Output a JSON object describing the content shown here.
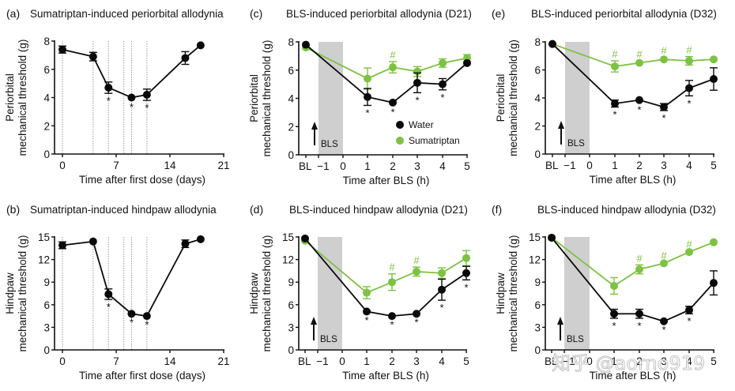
{
  "colors": {
    "water": "#0a0a0a",
    "sumatriptan": "#7dc242",
    "shade": "#cfcfcf",
    "axis": "#111111",
    "dotted_line": "#9a9a9a"
  },
  "watermark": "知乎 @aorno919",
  "chart_data": [
    {
      "id": "a",
      "letter": "(a)",
      "type": "line",
      "title": "Sumatriptan-induced periorbital allodynia",
      "xlabel": "Time after first dose (days)",
      "ylabel": [
        "Periorbital",
        "mechanical threshold (g)"
      ],
      "xlim": [
        -1,
        21
      ],
      "ylim": [
        0,
        8
      ],
      "xticks": [
        0,
        7,
        14,
        21
      ],
      "xtick_labels": [
        "0",
        "7",
        "14",
        "21"
      ],
      "yticks": [
        0,
        2,
        4,
        6,
        8
      ],
      "ytick_labels": [
        "0",
        "2",
        "4",
        "6",
        "8"
      ],
      "dosing_days": [
        0,
        4,
        6,
        8,
        9,
        11
      ],
      "series": [
        {
          "name": "Sumatriptan",
          "color_key": "water",
          "x": [
            0,
            4,
            6,
            9,
            11,
            16,
            18
          ],
          "y": [
            7.4,
            6.9,
            4.7,
            4.0,
            4.2,
            6.8,
            7.7
          ],
          "err": [
            0.25,
            0.3,
            0.4,
            0.1,
            0.4,
            0.45,
            0.1
          ],
          "marks": [
            "",
            "",
            "*",
            "*",
            "*",
            "",
            ""
          ],
          "mark_color_key": "water"
        }
      ]
    },
    {
      "id": "b",
      "letter": "(b)",
      "type": "line",
      "title": "Sumatriptan-induced hindpaw allodynia",
      "xlabel": "Time after first dose (days)",
      "ylabel": [
        "Hindpaw",
        "mechanical threshold (g)"
      ],
      "xlim": [
        -1,
        21
      ],
      "ylim": [
        0,
        15
      ],
      "xticks": [
        0,
        7,
        14,
        21
      ],
      "xtick_labels": [
        "0",
        "7",
        "14",
        "21"
      ],
      "yticks": [
        0,
        3,
        6,
        9,
        12,
        15
      ],
      "ytick_labels": [
        "0",
        "3",
        "6",
        "9",
        "12",
        "15"
      ],
      "dosing_days": [
        0,
        4,
        6,
        8,
        9,
        11
      ],
      "series": [
        {
          "name": "Sumatriptan",
          "color_key": "water",
          "x": [
            0,
            4,
            6,
            9,
            11,
            16,
            18
          ],
          "y": [
            13.9,
            14.4,
            7.4,
            4.8,
            4.5,
            14.1,
            14.7
          ],
          "err": [
            0.45,
            0.15,
            0.7,
            0.1,
            0.1,
            0.5,
            0.1
          ],
          "marks": [
            "",
            "",
            "*",
            "*",
            "*",
            "",
            ""
          ],
          "mark_color_key": "water"
        }
      ]
    },
    {
      "id": "c",
      "letter": "(c)",
      "type": "line",
      "title": "BLS-induced periorbital allodynia (D21)",
      "xlabel": "Time after BLS (h)",
      "ylabel": [
        "Periorbital",
        "mechanical threshold (g)"
      ],
      "categories": [
        "BL",
        "−1",
        "0",
        "1",
        "2",
        "3",
        "4",
        "5"
      ],
      "ylim": [
        0,
        8
      ],
      "yticks": [
        0,
        2,
        4,
        6,
        8
      ],
      "ytick_labels": [
        "0",
        "2",
        "4",
        "6",
        "8"
      ],
      "shade": {
        "from": "−1",
        "to": "0",
        "label": "BLS"
      },
      "legend": {
        "position": "lower-right",
        "entries": [
          "Water",
          "Sumatriptan"
        ]
      },
      "series": [
        {
          "name": "Water",
          "color_key": "water",
          "x": [
            "BL",
            "1",
            "2",
            "3",
            "4",
            "5"
          ],
          "y": [
            7.8,
            4.1,
            3.7,
            5.1,
            5.0,
            6.5
          ],
          "err": [
            0.1,
            0.6,
            0.1,
            0.7,
            0.4,
            0.1
          ],
          "marks": [
            "",
            "*",
            "*",
            "*",
            "*",
            ""
          ]
        },
        {
          "name": "Sumatriptan",
          "color_key": "sumatriptan",
          "x": [
            "BL",
            "1",
            "2",
            "3",
            "4",
            "5"
          ],
          "y": [
            7.6,
            5.4,
            6.2,
            5.9,
            6.5,
            6.85
          ],
          "err": [
            0.1,
            0.75,
            0.4,
            0.35,
            0.3,
            0.25
          ],
          "marks": [
            "",
            "",
            "#",
            "",
            "",
            ""
          ]
        }
      ]
    },
    {
      "id": "d",
      "letter": "(d)",
      "type": "line",
      "title": "BLS-induced hindpaw allodynia (D21)",
      "xlabel": "Time after BLS (h)",
      "ylabel": [
        "Hindpaw",
        "mechanical threshold (g)"
      ],
      "categories": [
        "BL",
        "−1",
        "0",
        "1",
        "2",
        "3",
        "4",
        "5"
      ],
      "ylim": [
        0,
        15
      ],
      "yticks": [
        0,
        3,
        6,
        9,
        12,
        15
      ],
      "ytick_labels": [
        "0",
        "3",
        "6",
        "9",
        "12",
        "15"
      ],
      "shade": {
        "from": "−1",
        "to": "0",
        "label": "BLS"
      },
      "series": [
        {
          "name": "Water",
          "color_key": "water",
          "x": [
            "BL",
            "1",
            "2",
            "3",
            "4",
            "5"
          ],
          "y": [
            14.8,
            5.1,
            4.5,
            4.8,
            8.0,
            10.2
          ],
          "err": [
            0.1,
            0.1,
            0.1,
            0.1,
            1.4,
            0.9
          ],
          "marks": [
            "",
            "*",
            "*",
            "*",
            "*",
            "*"
          ]
        },
        {
          "name": "Sumatriptan",
          "color_key": "sumatriptan",
          "x": [
            "BL",
            "1",
            "2",
            "3",
            "4",
            "5"
          ],
          "y": [
            14.5,
            7.6,
            9.0,
            10.4,
            10.2,
            12.2
          ],
          "err": [
            0.1,
            0.8,
            1.1,
            0.6,
            0.7,
            1.0
          ],
          "marks": [
            "",
            "",
            "#",
            "#",
            "",
            ""
          ]
        }
      ]
    },
    {
      "id": "e",
      "letter": "(e)",
      "type": "line",
      "title": "BLS-induced periorbital allodynia (D32)",
      "xlabel": "Time after BLS (h)",
      "ylabel": [
        "Periorbital",
        "mechanical threshold (g)"
      ],
      "categories": [
        "BL",
        "−1",
        "0",
        "1",
        "2",
        "3",
        "4",
        "5"
      ],
      "ylim": [
        0,
        8
      ],
      "yticks": [
        0,
        2,
        4,
        6,
        8
      ],
      "ytick_labels": [
        "0",
        "2",
        "4",
        "6",
        "8"
      ],
      "shade": {
        "from": "−1",
        "to": "0",
        "label": "BLS"
      },
      "series": [
        {
          "name": "Water",
          "color_key": "water",
          "x": [
            "BL",
            "1",
            "2",
            "3",
            "4",
            "5"
          ],
          "y": [
            7.85,
            3.6,
            3.85,
            3.35,
            4.7,
            5.35
          ],
          "err": [
            0.1,
            0.25,
            0.1,
            0.25,
            0.55,
            0.8
          ],
          "marks": [
            "",
            "*",
            "*",
            "*",
            "*",
            ""
          ]
        },
        {
          "name": "Sumatriptan",
          "color_key": "sumatriptan",
          "x": [
            "BL",
            "1",
            "2",
            "3",
            "4",
            "5"
          ],
          "y": [
            7.85,
            6.25,
            6.5,
            6.75,
            6.65,
            6.75
          ],
          "err": [
            0.1,
            0.4,
            0.1,
            0.1,
            0.3,
            0.1
          ],
          "marks": [
            "",
            "#",
            "#",
            "#",
            "#",
            ""
          ]
        }
      ]
    },
    {
      "id": "f",
      "letter": "(f)",
      "type": "line",
      "title": "BLS-induced hindpaw allodynia (D32)",
      "xlabel": "Time after BLS (h)",
      "ylabel": [
        "Hindpaw",
        "mechanical threshold (g)"
      ],
      "categories": [
        "BL",
        "−1",
        "0",
        "1",
        "2",
        "3",
        "4",
        "5"
      ],
      "ylim": [
        0,
        15
      ],
      "yticks": [
        0,
        3,
        6,
        9,
        12,
        15
      ],
      "ytick_labels": [
        "0",
        "3",
        "6",
        "9",
        "12",
        "15"
      ],
      "shade": {
        "from": "−1",
        "to": "0",
        "label": "BLS"
      },
      "series": [
        {
          "name": "Water",
          "color_key": "water",
          "x": [
            "BL",
            "1",
            "2",
            "3",
            "4",
            "5"
          ],
          "y": [
            14.9,
            4.8,
            4.8,
            3.8,
            5.3,
            8.9
          ],
          "err": [
            0.1,
            0.6,
            0.6,
            0.1,
            0.5,
            1.6
          ],
          "marks": [
            "",
            "*",
            "*",
            "*",
            "*",
            ""
          ]
        },
        {
          "name": "Sumatriptan",
          "color_key": "sumatriptan",
          "x": [
            "BL",
            "1",
            "2",
            "3",
            "4",
            "5"
          ],
          "y": [
            14.9,
            8.5,
            10.7,
            11.5,
            13.0,
            14.3
          ],
          "err": [
            0.1,
            1.1,
            0.6,
            0.1,
            0.1,
            0.1
          ],
          "marks": [
            "",
            "",
            "#",
            "#",
            "#",
            ""
          ]
        }
      ]
    }
  ]
}
